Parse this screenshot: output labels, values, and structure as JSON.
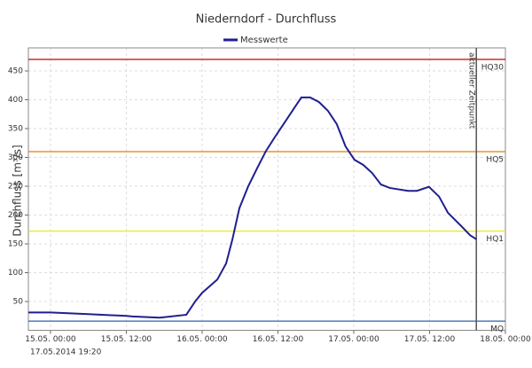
{
  "chart_data": {
    "type": "line",
    "title": "Niederndorf - Durchfluss",
    "y_label": "Durchfluss [m³/s]",
    "footer": "17.05.2014  19:20",
    "x": [
      -3.5,
      0,
      6,
      12,
      13,
      17.3,
      21.5,
      22.9,
      24,
      26.4,
      27.8,
      28.8,
      29.9,
      31.3,
      32.7,
      34.1,
      35.5,
      36.9,
      38.3,
      39.7,
      41.1,
      42.5,
      43.9,
      45.3,
      46.7,
      48.1,
      49.5,
      50.9,
      52.3,
      53.7,
      56.6,
      58,
      59.9,
      61.5,
      62.9,
      65,
      66.4,
      67.4
    ],
    "series": [
      {
        "name": "Messwerte",
        "color": "#1f1f8f",
        "values": [
          31,
          31,
          28,
          25,
          24,
          22,
          27,
          50,
          65,
          88,
          116,
          158,
          212,
          250,
          281,
          311,
          335,
          358,
          381,
          404,
          404,
          396,
          381,
          358,
          319,
          296,
          287,
          273,
          253,
          247,
          242,
          242,
          249,
          232,
          204,
          181,
          165,
          158
        ]
      }
    ],
    "xlim": [
      -3.5,
      72
    ],
    "xticks": [
      {
        "value": 0,
        "label": "15.05. 00:00"
      },
      {
        "value": 12,
        "label": "15.05. 12:00"
      },
      {
        "value": 24,
        "label": "16.05. 00:00"
      },
      {
        "value": 36,
        "label": "16.05. 12:00"
      },
      {
        "value": 48,
        "label": "17.05. 00:00"
      },
      {
        "value": 60,
        "label": "17.05. 12:00"
      },
      {
        "value": 72,
        "label": "18.05. 00:00"
      }
    ],
    "ylim": [
      0,
      490
    ],
    "yticks": [
      50,
      100,
      150,
      200,
      250,
      300,
      350,
      400,
      450
    ],
    "grid": true,
    "thresholds": [
      {
        "label": "HQ30",
        "value": 470,
        "color": "#cc0000"
      },
      {
        "label": "HQ5",
        "value": 310,
        "color": "#e08000"
      },
      {
        "label": "HQ1",
        "value": 172,
        "color": "#e8e800"
      },
      {
        "label": "MQ",
        "value": 16,
        "color": "#3060b0"
      }
    ],
    "current_time": {
      "label": "aktueller Zeitpunkt",
      "x": 67.4
    }
  }
}
